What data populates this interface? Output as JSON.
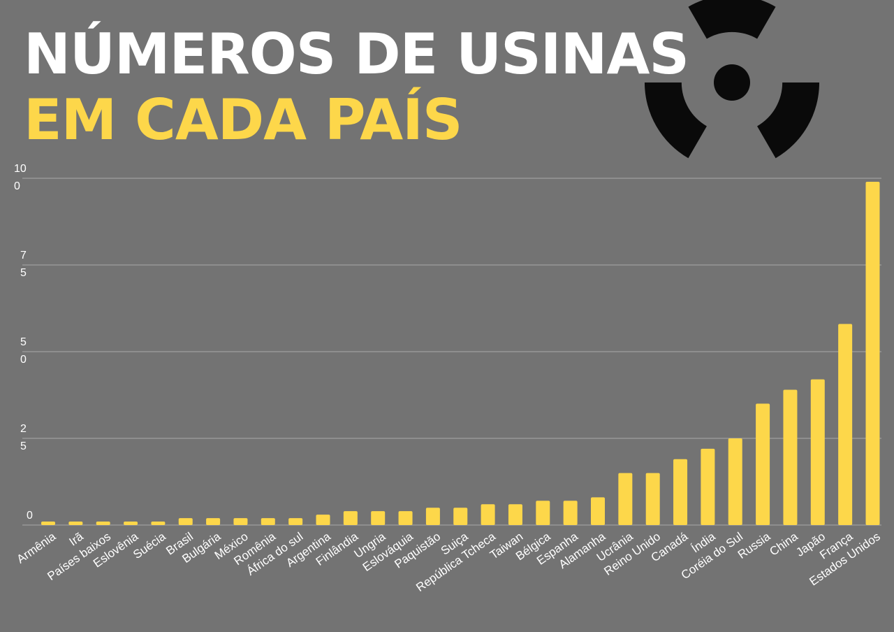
{
  "title_line1": "NÚMEROS DE USINAS",
  "title_line2": "EM CADA PAÍS",
  "colors": {
    "background": "#737373",
    "bar": "#fdd74a",
    "title_primary": "#ffffff",
    "title_accent": "#fdd74a",
    "gridline": "#a8a8a8",
    "icon": "#0a0a0a"
  },
  "decoration_icon": "radiation-trefoil-icon",
  "chart_data": {
    "type": "bar",
    "categories": [
      "Armênia",
      "Irã",
      "Países baixos",
      "Eslovênia",
      "Suécia",
      "Brasil",
      "Bulgária",
      "México",
      "Romênia",
      "África do sul",
      "Argentina",
      "Finlândia",
      "Ungria",
      "Eslováquia",
      "Paquistão",
      "Suiça",
      "República Tcheca",
      "Taiwan",
      "Bélgica",
      "Espanha",
      "Alamanha",
      "Ucrânia",
      "Reino Unido",
      "Canadá",
      "Índia",
      "Coréia do Sul",
      "Russia",
      "China",
      "Japão",
      "França",
      "Estados Unidos"
    ],
    "values": [
      1,
      1,
      1,
      1,
      1,
      2,
      2,
      2,
      2,
      2,
      3,
      4,
      4,
      4,
      5,
      5,
      6,
      6,
      7,
      7,
      8,
      15,
      15,
      19,
      22,
      25,
      35,
      39,
      42,
      58,
      99
    ],
    "ylim": [
      0,
      100
    ],
    "yticks": [
      {
        "value": 0,
        "label": "0"
      },
      {
        "value": 25,
        "label": "25"
      },
      {
        "value": 50,
        "label": "50"
      },
      {
        "value": 75,
        "label": "75"
      },
      {
        "value": 100,
        "label": "100"
      }
    ],
    "grid": true,
    "xlabel": "",
    "ylabel": ""
  }
}
